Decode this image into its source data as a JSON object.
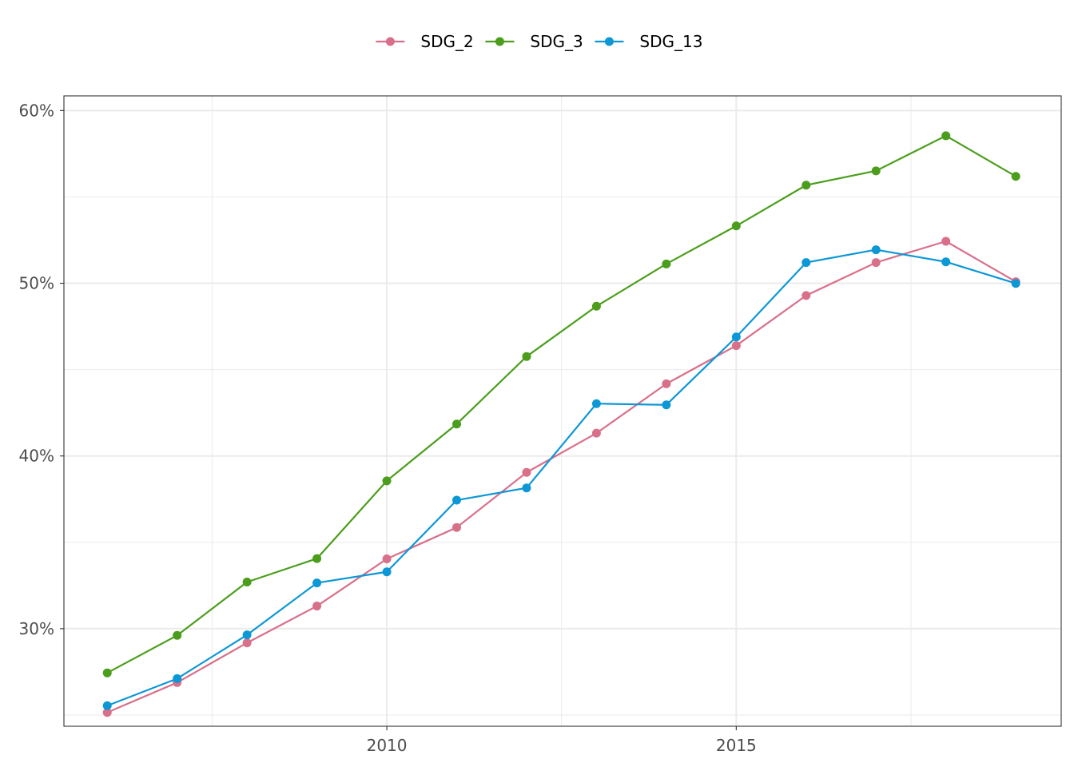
{
  "chart_data": {
    "type": "line",
    "title": "",
    "xlabel": "",
    "ylabel": "",
    "x": [
      2006,
      2007,
      2008,
      2009,
      2010,
      2011,
      2012,
      2013,
      2014,
      2015,
      2016,
      2017,
      2018,
      2019
    ],
    "xlim": [
      2005.38,
      2019.65
    ],
    "ylim": [
      0.2435,
      0.6085
    ],
    "x_ticks": [
      2010,
      2015
    ],
    "x_tick_labels": [
      "2010",
      "2015"
    ],
    "x_minor_ticks": [
      2007.5,
      2012.5,
      2017.5
    ],
    "y_ticks": [
      0.3,
      0.4,
      0.5,
      0.6
    ],
    "y_tick_labels": [
      "30%",
      "40%",
      "50%",
      "60%"
    ],
    "y_minor_ticks": [
      0.25,
      0.35,
      0.45,
      0.55
    ],
    "grid": true,
    "legend_position": "top",
    "series": [
      {
        "name": "SDG_2",
        "color": "#D9708A",
        "values": [
          0.2515,
          0.2688,
          0.2918,
          0.3131,
          0.3404,
          0.3586,
          0.3905,
          0.4132,
          0.4418,
          0.4639,
          0.4929,
          0.512,
          0.5243,
          0.5009
        ]
      },
      {
        "name": "SDG_3",
        "color": "#4A9E1B",
        "values": [
          0.2744,
          0.2961,
          0.327,
          0.3406,
          0.3856,
          0.4185,
          0.4576,
          0.4867,
          0.5112,
          0.5332,
          0.5568,
          0.5651,
          0.5854,
          0.5619
        ]
      },
      {
        "name": "SDG_13",
        "color": "#0C97D6",
        "values": [
          0.2554,
          0.2711,
          0.2964,
          0.3265,
          0.3329,
          0.3744,
          0.3815,
          0.4303,
          0.4296,
          0.4689,
          0.512,
          0.5194,
          0.5124,
          0.4999
        ]
      }
    ]
  }
}
